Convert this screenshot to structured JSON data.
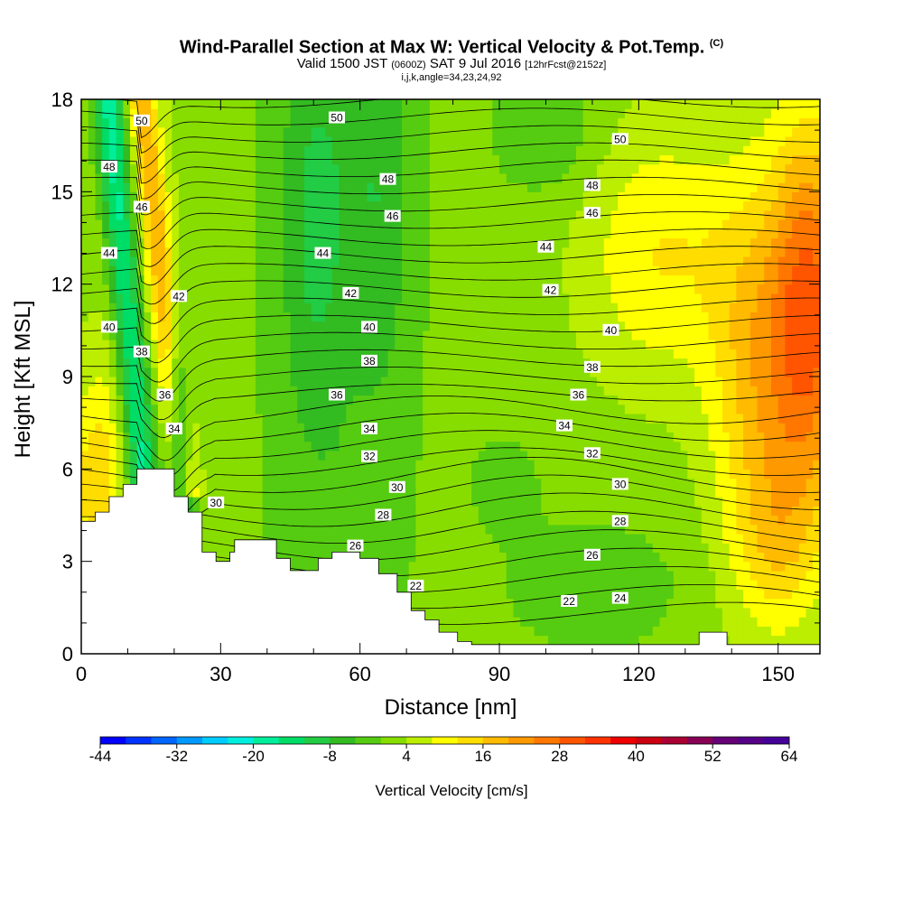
{
  "title": {
    "main": "Wind-Parallel Section at Max W: Vertical Velocity & Pot.Temp.",
    "copyright": "(C)",
    "valid_prefix": "Valid 1500 JST",
    "valid_utc": "(0600Z)",
    "valid_date": "SAT 9 Jul 2016",
    "forecast": "[12hrFcst@2152z]",
    "section_params": "i,j,k,angle=34,23,24,92"
  },
  "chart_data": {
    "type": "heatmap",
    "xlabel": "Distance [nm]",
    "ylabel": "Height [Kft MSL]",
    "xlim": [
      0,
      159
    ],
    "ylim": [
      0,
      18
    ],
    "x_ticks": [
      0,
      30,
      60,
      90,
      120,
      150
    ],
    "y_ticks": [
      0,
      3,
      6,
      9,
      12,
      15,
      18
    ],
    "colorbar": {
      "title": "Vertical Velocity [cm/s]",
      "tick_labels": [
        "-44",
        "-32",
        "-20",
        "-8",
        "4",
        "16",
        "28",
        "40",
        "52",
        "64"
      ],
      "tick_values": [
        -44,
        -32,
        -20,
        -8,
        4,
        16,
        28,
        40,
        52,
        64
      ],
      "range": [
        -44,
        64
      ],
      "step": 4,
      "colors": [
        "#0000ff",
        "#0033ff",
        "#0066ff",
        "#0099ff",
        "#00ccff",
        "#00eedd",
        "#00ee99",
        "#00dd66",
        "#22cc44",
        "#33bb22",
        "#55cc11",
        "#88dd00",
        "#bbee00",
        "#ffff00",
        "#ffdd00",
        "#ffbb00",
        "#ff9900",
        "#ff7700",
        "#ff5500",
        "#ff3300",
        "#ee0000",
        "#cc0011",
        "#aa0033",
        "#880055",
        "#660077",
        "#550088",
        "#440099"
      ]
    },
    "theta_contour_labels": [
      {
        "value": "50",
        "x": 13,
        "y": 17.3
      },
      {
        "value": "50",
        "x": 55,
        "y": 17.4
      },
      {
        "value": "50",
        "x": 116,
        "y": 16.7
      },
      {
        "value": "48",
        "x": 6,
        "y": 15.8
      },
      {
        "value": "48",
        "x": 66,
        "y": 15.4
      },
      {
        "value": "48",
        "x": 110,
        "y": 15.2
      },
      {
        "value": "46",
        "x": 13,
        "y": 14.5
      },
      {
        "value": "46",
        "x": 67,
        "y": 14.2
      },
      {
        "value": "46",
        "x": 110,
        "y": 14.3
      },
      {
        "value": "44",
        "x": 6,
        "y": 13.0
      },
      {
        "value": "44",
        "x": 52,
        "y": 13.0
      },
      {
        "value": "44",
        "x": 100,
        "y": 13.2
      },
      {
        "value": "42",
        "x": 21,
        "y": 11.6
      },
      {
        "value": "42",
        "x": 58,
        "y": 11.7
      },
      {
        "value": "42",
        "x": 101,
        "y": 11.8
      },
      {
        "value": "40",
        "x": 6,
        "y": 10.6
      },
      {
        "value": "40",
        "x": 62,
        "y": 10.6
      },
      {
        "value": "40",
        "x": 114,
        "y": 10.5
      },
      {
        "value": "38",
        "x": 13,
        "y": 9.8
      },
      {
        "value": "38",
        "x": 62,
        "y": 9.5
      },
      {
        "value": "38",
        "x": 110,
        "y": 9.3
      },
      {
        "value": "36",
        "x": 18,
        "y": 8.4
      },
      {
        "value": "36",
        "x": 55,
        "y": 8.4
      },
      {
        "value": "36",
        "x": 107,
        "y": 8.4
      },
      {
        "value": "34",
        "x": 20,
        "y": 7.3
      },
      {
        "value": "34",
        "x": 62,
        "y": 7.3
      },
      {
        "value": "34",
        "x": 104,
        "y": 7.4
      },
      {
        "value": "32",
        "x": 62,
        "y": 6.4
      },
      {
        "value": "32",
        "x": 110,
        "y": 6.5
      },
      {
        "value": "30",
        "x": 29,
        "y": 4.9
      },
      {
        "value": "30",
        "x": 68,
        "y": 5.4
      },
      {
        "value": "30",
        "x": 116,
        "y": 5.5
      },
      {
        "value": "28",
        "x": 65,
        "y": 4.5
      },
      {
        "value": "28",
        "x": 116,
        "y": 4.3
      },
      {
        "value": "26",
        "x": 59,
        "y": 3.5
      },
      {
        "value": "26",
        "x": 110,
        "y": 3.2
      },
      {
        "value": "24",
        "x": 116,
        "y": 1.8
      },
      {
        "value": "22",
        "x": 72,
        "y": 2.2
      },
      {
        "value": "22",
        "x": 105,
        "y": 1.7
      }
    ],
    "terrain_kft": [
      [
        0,
        4.3
      ],
      [
        3,
        4.3
      ],
      [
        3,
        4.6
      ],
      [
        6,
        4.6
      ],
      [
        6,
        5.1
      ],
      [
        9,
        5.1
      ],
      [
        9,
        5.5
      ],
      [
        12,
        5.5
      ],
      [
        12,
        6.0
      ],
      [
        18,
        6.0
      ],
      [
        18,
        6.0
      ],
      [
        20,
        6.0
      ],
      [
        20,
        5.1
      ],
      [
        23,
        5.1
      ],
      [
        23,
        4.6
      ],
      [
        26,
        4.6
      ],
      [
        26,
        3.3
      ],
      [
        29,
        3.3
      ],
      [
        29,
        3.0
      ],
      [
        32,
        3.0
      ],
      [
        32,
        3.3
      ],
      [
        33,
        3.3
      ],
      [
        33,
        3.7
      ],
      [
        42,
        3.7
      ],
      [
        42,
        3.1
      ],
      [
        45,
        3.1
      ],
      [
        45,
        2.7
      ],
      [
        51,
        2.7
      ],
      [
        51,
        3.1
      ],
      [
        54,
        3.1
      ],
      [
        54,
        3.3
      ],
      [
        60,
        3.3
      ],
      [
        60,
        3.1
      ],
      [
        64,
        3.1
      ],
      [
        64,
        2.6
      ],
      [
        68,
        2.6
      ],
      [
        68,
        2.0
      ],
      [
        71,
        2.0
      ],
      [
        71,
        1.4
      ],
      [
        74,
        1.4
      ],
      [
        74,
        1.1
      ],
      [
        77,
        1.1
      ],
      [
        77,
        0.7
      ],
      [
        81,
        0.7
      ],
      [
        81,
        0.4
      ],
      [
        84,
        0.4
      ],
      [
        84,
        0.3
      ],
      [
        133,
        0.3
      ],
      [
        133,
        0.7
      ],
      [
        139,
        0.7
      ],
      [
        139,
        0.3
      ],
      [
        159,
        0.3
      ]
    ]
  }
}
